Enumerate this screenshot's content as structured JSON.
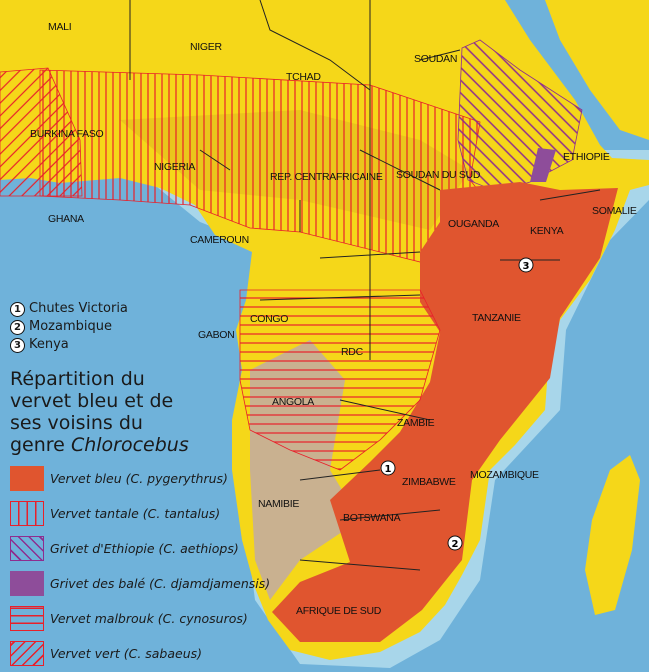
{
  "countries": [
    "MALI",
    "NIGER",
    "TCHAD",
    "SOUDAN",
    "BURKINA FASO",
    "NIGERIA",
    "GHANA",
    "REP. CENTRAFRICAINE",
    "SOUDAN DU SUD",
    "ETHIOPIE",
    "CAMEROUN",
    "OUGANDA",
    "SOMALIE",
    "KENYA",
    "CONGO",
    "GABON",
    "RDC",
    "TANZANIE",
    "ANGOLA",
    "ZAMBIE",
    "ZIMBABWE",
    "MOZAMBIQUE",
    "NAMIBIE",
    "BOTSWANA",
    "AFRIQUE DE SUD"
  ],
  "markers": [
    {
      "num": "1",
      "label": "Chutes Victoria"
    },
    {
      "num": "2",
      "label": "Mozambique"
    },
    {
      "num": "3",
      "label": "Kenya"
    }
  ],
  "legend": {
    "title": "Répartition du vervet bleu et de ses voisins du genre",
    "title_genus": "Chlorocebus",
    "items": [
      {
        "label": "Vervet bleu (C. pygerythrus)",
        "color": "#e0552f",
        "pattern": "solid"
      },
      {
        "label": "Vervet tantale (C. tantalus)",
        "color": "#e8202a",
        "pattern": "vertical"
      },
      {
        "label": "Grivet d'Ethiopie (C. aethiops)",
        "color": "#8e2d8f",
        "pattern": "diagonal"
      },
      {
        "label": "Grivet des balé (C. djamdjamensis)",
        "color": "#8e4d9a",
        "pattern": "solid"
      },
      {
        "label": "Vervet malbrouk (C. cynosuros)",
        "color": "#e8202a",
        "pattern": "horizontal"
      },
      {
        "label": "Vervet vert (C. sabaeus)",
        "color": "#e8202a",
        "pattern": "diagonal"
      }
    ]
  },
  "colors": {
    "ocean": "#6fb2da",
    "shelf": "#a8d6ea",
    "land": "#f5d719",
    "upland": "#e7c01d",
    "desert": "#c9b190"
  }
}
